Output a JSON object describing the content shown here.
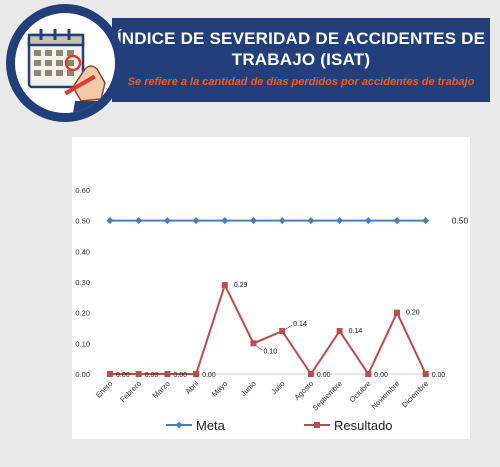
{
  "header": {
    "title": "ÍNDICE DE SEVERIDAD DE ACCIDENTES DE TRABAJO (ISAT)",
    "subtitle": "Se refiere a la  cantidad de días perdidos por accidentes de trabajo",
    "banner_color": "#223f7c",
    "subtitle_color": "#f05a28",
    "logo_icon": "calendar-hand-pen-icon"
  },
  "chart_data": {
    "type": "line",
    "categories": [
      "Enero",
      "Febrero",
      "Marzo",
      "Abril",
      "Mayo",
      "Junio",
      "Julio",
      "Agosto",
      "Septiembre",
      "Octubre",
      "Noviembre",
      "Diciembre"
    ],
    "series": [
      {
        "name": "Meta",
        "color": "#4a7ebb",
        "marker": "diamond",
        "values": [
          0.5,
          0.5,
          0.5,
          0.5,
          0.5,
          0.5,
          0.5,
          0.5,
          0.5,
          0.5,
          0.5,
          0.5
        ],
        "labels": [
          null,
          null,
          null,
          null,
          null,
          null,
          null,
          null,
          null,
          null,
          null,
          "0.50"
        ]
      },
      {
        "name": "Resultado",
        "color": "#be4b48",
        "marker": "square",
        "values": [
          0.0,
          0.0,
          0.0,
          0.0,
          0.29,
          0.1,
          0.14,
          0.0,
          0.14,
          0.0,
          0.2,
          0.0
        ],
        "labels": [
          "0.00",
          "0.00",
          "0.00",
          "0.00",
          "0.29",
          "0.10",
          "0.14",
          "0.00",
          "0.14",
          "0.00",
          "0.20",
          "0.00"
        ]
      }
    ],
    "yticks": [
      "0.00",
      "0.10",
      "0.20",
      "0.30",
      "0.40",
      "0.50",
      "0.60"
    ],
    "ylim": [
      0,
      0.6
    ],
    "grid": false,
    "legend_position": "bottom"
  }
}
